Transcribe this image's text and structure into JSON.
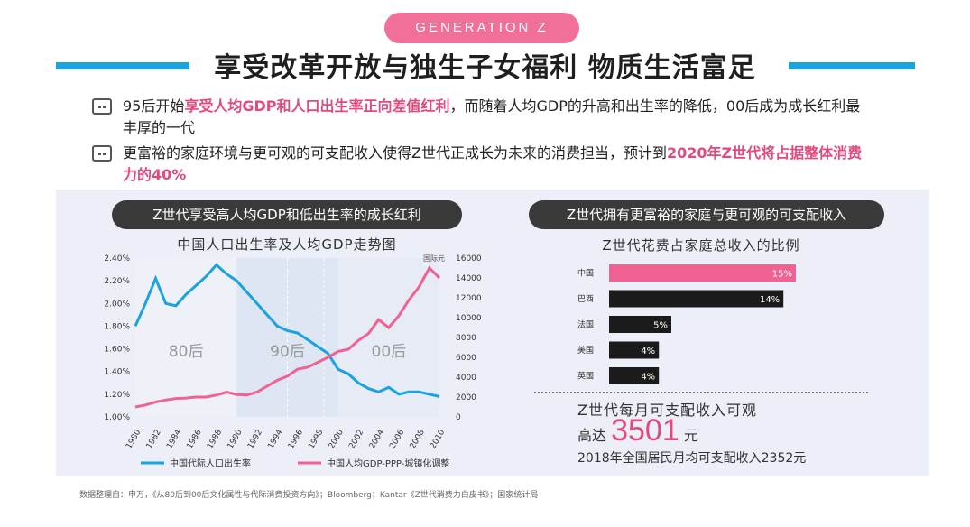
{
  "badge": "GENERATION Z",
  "title": "享受改革开放与独生子女福利 物质生活富足",
  "bullets": [
    {
      "pre": "95后开始",
      "highlight": "享受人均GDP和人口出生率正向差值红利",
      "post": "，而随着人均GDP的升高和出生率的降低，00后成为成长红利最丰厚的一代"
    },
    {
      "pre": "更富裕的家庭环境与更可观的可支配收入使得Z世代正成长为未来的消费担当，预计到",
      "highlight": "2020年Z世代将占据整体消费力的40%",
      "post": ""
    }
  ],
  "left_pill": "Z世代享受高人均GDP和低出生率的成长红利",
  "right_pill": "Z世代拥有更富裕的家庭与更可观的可支配收入",
  "colors": {
    "accent_blue": "#1aa3df",
    "accent_pink": "#e24a7d",
    "badge_pink": "#f0709a",
    "bar_dark": "#1b1b1b"
  },
  "chart_data": [
    {
      "type": "line",
      "title": "中国人口出生率及人均GDP走势图",
      "x": [
        "1980",
        "1981",
        "1982",
        "1983",
        "1984",
        "1985",
        "1986",
        "1987",
        "1988",
        "1989",
        "1990",
        "1991",
        "1992",
        "1993",
        "1994",
        "1995",
        "1996",
        "1997",
        "1998",
        "1999",
        "2000",
        "2001",
        "2002",
        "2003",
        "2004",
        "2005",
        "2006",
        "2007",
        "2008",
        "2009",
        "2010"
      ],
      "x_tick_labels": [
        "1980",
        "1982",
        "1984",
        "1986",
        "1988",
        "1990",
        "1992",
        "1994",
        "1996",
        "1998",
        "2000",
        "2002",
        "2004",
        "2006",
        "2008",
        "2010"
      ],
      "y_left": {
        "ylim": [
          1.0,
          2.4
        ],
        "ticks": [
          "1.00%",
          "1.20%",
          "1.40%",
          "1.60%",
          "1.80%",
          "2.00%",
          "2.20%",
          "2.40%"
        ]
      },
      "y_right": {
        "ylim": [
          0,
          16000
        ],
        "ticks": [
          "0",
          "2000",
          "4000",
          "6000",
          "8000",
          "10000",
          "12000",
          "14000",
          "16000"
        ],
        "unit": "国际元"
      },
      "series": [
        {
          "name": "中国代际人口出生率",
          "axis": "left",
          "color": "#1aa3df",
          "values": [
            1.8,
            2.0,
            2.22,
            2.0,
            1.98,
            2.08,
            2.16,
            2.24,
            2.34,
            2.26,
            2.2,
            2.1,
            2.0,
            1.9,
            1.8,
            1.76,
            1.74,
            1.68,
            1.62,
            1.56,
            1.42,
            1.38,
            1.3,
            1.25,
            1.22,
            1.26,
            1.2,
            1.22,
            1.22,
            1.2,
            1.18
          ]
        },
        {
          "name": "中国人均GDP-PPP-城镇化调整",
          "axis": "right",
          "color": "#f06292",
          "values": [
            1000,
            1200,
            1500,
            1700,
            1850,
            1900,
            2000,
            2000,
            2200,
            2500,
            2250,
            2200,
            2500,
            3100,
            3700,
            4100,
            4800,
            5000,
            5500,
            6000,
            6600,
            6800,
            7700,
            8400,
            9800,
            9000,
            10200,
            11800,
            13100,
            15000,
            14000
          ]
        }
      ],
      "bands": [
        {
          "label": "80后",
          "from": "1980",
          "to": "1990"
        },
        {
          "label": "90后",
          "from": "1990",
          "to": "2000"
        },
        {
          "label": "00后",
          "from": "2000",
          "to": "2010"
        }
      ]
    },
    {
      "type": "bar",
      "title": "Z世代花费占家庭总收入的比例",
      "categories": [
        "中国",
        "巴西",
        "法国",
        "美国",
        "英国"
      ],
      "values": [
        15,
        14,
        5,
        4,
        4
      ],
      "value_labels": [
        "15%",
        "14%",
        "5%",
        "4%",
        "4%"
      ],
      "colors": [
        "#f06292",
        "#1b1b1b",
        "#1b1b1b",
        "#1b1b1b",
        "#1b1b1b"
      ],
      "xlim": [
        0,
        15
      ]
    }
  ],
  "income": {
    "title": "Z世代每月可支配收入可观",
    "prefix": "高达",
    "amount": "3501",
    "unit": "元",
    "compare": "2018年全国居民月均可支配收入2352元"
  },
  "source": "数据整理自：申万，《从80后到00后文化属性与代际消费投资方向》；Bloomberg；Kantar《Z世代消费力白皮书》；国家统计局"
}
